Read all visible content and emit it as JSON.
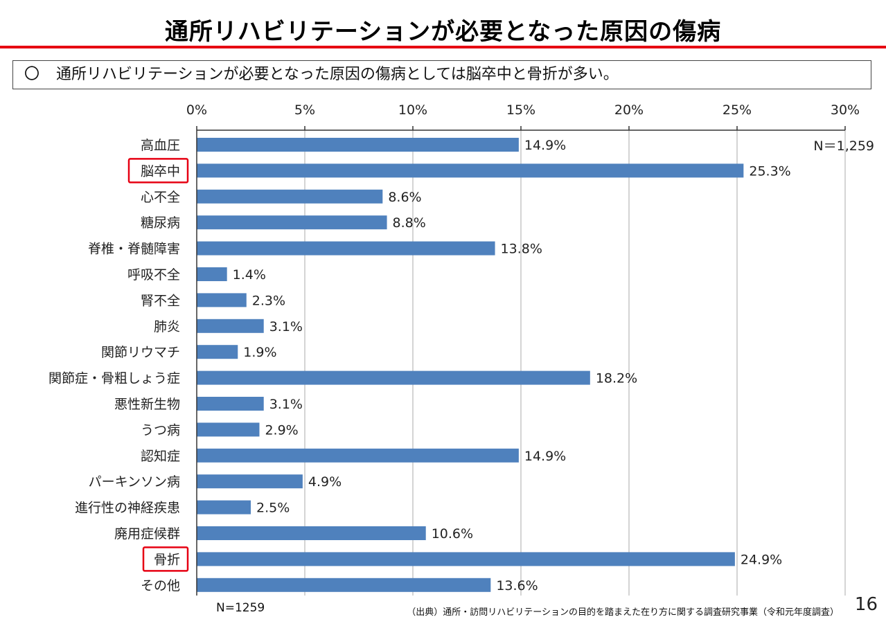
{
  "slide": {
    "title": "通所リハビリテーションが必要となった原因の傷病",
    "summary_bullet": "〇",
    "summary": "通所リハビリテーションが必要となった原因の傷病としては脳卒中と骨折が多い。",
    "n_bottom": "N=1259",
    "source": "（出典）通所・訪問リハビリテーションの目的を踏まえた在り方に関する調査研究事業（令和元年度調査）",
    "page_number": "16"
  },
  "chart_data": {
    "type": "bar",
    "orientation": "horizontal",
    "categories": [
      "高血圧",
      "脳卒中",
      "心不全",
      "糖尿病",
      "脊椎・脊髄障害",
      "呼吸不全",
      "腎不全",
      "肺炎",
      "関節リウマチ",
      "関節症・骨粗しょう症",
      "悪性新生物",
      "うつ病",
      "認知症",
      "パーキンソン病",
      "進行性の神経疾患",
      "廃用症候群",
      "骨折",
      "その他"
    ],
    "values": [
      14.9,
      25.3,
      8.6,
      8.8,
      13.8,
      1.4,
      2.3,
      3.1,
      1.9,
      18.2,
      3.1,
      2.9,
      14.9,
      4.9,
      2.5,
      10.6,
      24.9,
      13.6
    ],
    "data_labels": [
      "14.9%",
      "25.3%",
      "8.6%",
      "8.8%",
      "13.8%",
      "1.4%",
      "2.3%",
      "3.1%",
      "1.9%",
      "18.2%",
      "3.1%",
      "2.9%",
      "14.9%",
      "4.9%",
      "2.5%",
      "10.6%",
      "24.9%",
      "13.6%"
    ],
    "highlighted_categories": [
      "脳卒中",
      "骨折"
    ],
    "xlim": [
      0,
      30
    ],
    "xticks": [
      0,
      5,
      10,
      15,
      20,
      25,
      30
    ],
    "xtick_labels": [
      "0%",
      "5%",
      "10%",
      "15%",
      "20%",
      "25%",
      "30%"
    ],
    "annotation": "N＝1,259",
    "grid": true,
    "legend": "none",
    "bar_color": "#4f81bd",
    "highlight_color": "#e60012",
    "grid_color": "#b7b7b7"
  }
}
